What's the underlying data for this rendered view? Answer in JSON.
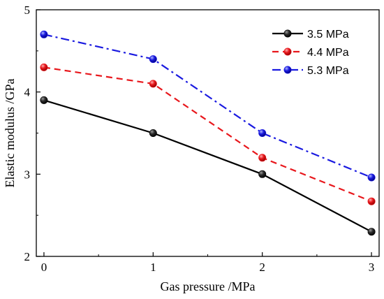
{
  "chart_data": {
    "type": "line",
    "xlabel": "Gas pressure /MPa",
    "ylabel": "Elastic modulus /GPa",
    "x": [
      0,
      1,
      2,
      3
    ],
    "xticks": [
      0,
      1,
      2,
      3
    ],
    "yticks": [
      2,
      3,
      4,
      5
    ],
    "xlim": [
      -0.07,
      3.07
    ],
    "ylim": [
      2,
      5
    ],
    "grid": false,
    "legend_position": "top-right",
    "series": [
      {
        "name": "3.5 MPa",
        "color": "#000000",
        "dash": "solid",
        "values": [
          3.9,
          3.5,
          3.0,
          2.3
        ]
      },
      {
        "name": "4.4 MPa",
        "color": "#e8171c",
        "dash": "dashed",
        "values": [
          4.3,
          4.1,
          3.2,
          2.67
        ]
      },
      {
        "name": "5.3 MPa",
        "color": "#1a1ae0",
        "dash": "dash-dot",
        "values": [
          4.7,
          4.4,
          3.5,
          2.96
        ]
      }
    ]
  }
}
